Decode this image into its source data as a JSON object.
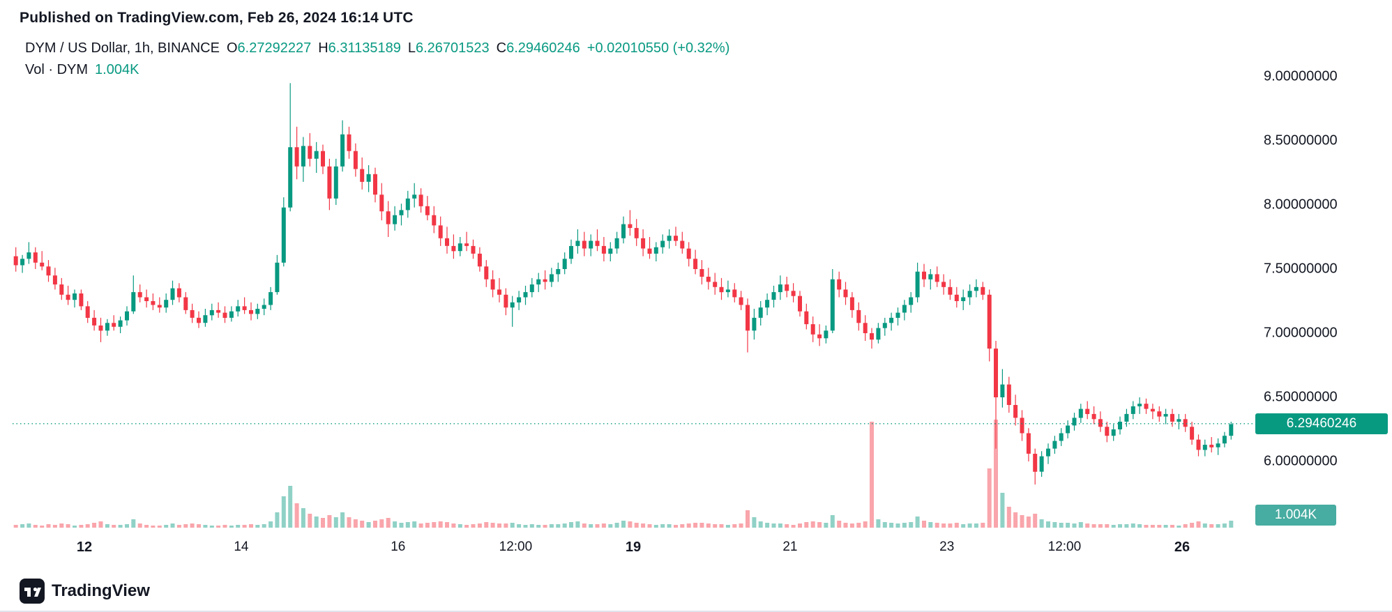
{
  "header": {
    "published": "Published on TradingView.com, Feb 26, 2024 16:14 UTC"
  },
  "legend": {
    "symbol_title": "DYM / US Dollar, 1h, BINANCE",
    "ohlc": [
      {
        "label": "O",
        "value": "6.27292227"
      },
      {
        "label": "H",
        "value": "6.31135189"
      },
      {
        "label": "L",
        "value": "6.26701523"
      },
      {
        "label": "C",
        "value": "6.29460246"
      }
    ],
    "change": "+0.02010550 (+0.32%)",
    "volume_label": "Vol · DYM",
    "volume_value": "1.004K"
  },
  "price_scale": {
    "ticks": [
      "9.00000000",
      "8.50000000",
      "8.00000000",
      "7.50000000",
      "7.00000000",
      "6.50000000",
      "6.00000000"
    ],
    "last_price_label": "6.29460246",
    "last_volume_label": "1.004K"
  },
  "time_scale": {
    "ticks": [
      {
        "label": "12",
        "index": 11,
        "bold": true
      },
      {
        "label": "14",
        "index": 35,
        "bold": false
      },
      {
        "label": "16",
        "index": 59,
        "bold": false
      },
      {
        "label": "12:00",
        "index": 77,
        "bold": false
      },
      {
        "label": "19",
        "index": 95,
        "bold": true
      },
      {
        "label": "21",
        "index": 119,
        "bold": false
      },
      {
        "label": "23",
        "index": 143,
        "bold": false
      },
      {
        "label": "12:00",
        "index": 161,
        "bold": false
      },
      {
        "label": "26",
        "index": 179,
        "bold": true
      }
    ]
  },
  "footer": {
    "brand": "TradingView"
  },
  "colors": {
    "up": "#089981",
    "down": "#F23645",
    "vol_up": "#90d1c6",
    "vol_down": "#f9a5ab",
    "text": "#131722",
    "last_price_line": "#089981",
    "badge_price_bg": "#089981",
    "badge_volume_bg": "#47aca1"
  },
  "chart_data": {
    "type": "candlestick",
    "title": "DYM / US Dollar, 1h, BINANCE",
    "symbol": "DYM/USD",
    "interval": "1h",
    "exchange": "BINANCE",
    "open": 6.27292227,
    "high": 6.31135189,
    "low": 6.26701523,
    "close": 6.29460246,
    "change_abs": 0.0201055,
    "change_pct": 0.32,
    "last_close": 6.29460246,
    "last_volume_k": 1.004,
    "ylim": [
      5.75,
      9.1
    ],
    "y_tick_values": [
      9.0,
      8.5,
      8.0,
      7.5,
      7.0,
      6.5,
      6.0
    ],
    "grid": false,
    "x_start": "Feb 11 02:00",
    "x_end": "Feb 26 16:00",
    "candle_hours": 2,
    "candles_format": [
      "open",
      "high",
      "low",
      "close",
      "volume_k"
    ],
    "candles": [
      [
        7.6,
        7.67,
        7.48,
        7.53,
        0.4
      ],
      [
        7.53,
        7.61,
        7.47,
        7.58,
        0.5
      ],
      [
        7.58,
        7.71,
        7.54,
        7.63,
        0.6
      ],
      [
        7.63,
        7.67,
        7.5,
        7.55,
        0.4
      ],
      [
        7.55,
        7.64,
        7.49,
        7.52,
        0.3
      ],
      [
        7.52,
        7.57,
        7.4,
        7.45,
        0.5
      ],
      [
        7.45,
        7.51,
        7.34,
        7.38,
        0.4
      ],
      [
        7.38,
        7.43,
        7.26,
        7.3,
        0.6
      ],
      [
        7.3,
        7.37,
        7.22,
        7.26,
        0.5
      ],
      [
        7.26,
        7.34,
        7.2,
        7.31,
        0.3
      ],
      [
        7.31,
        7.34,
        7.18,
        7.21,
        0.4
      ],
      [
        7.21,
        7.25,
        7.08,
        7.12,
        0.5
      ],
      [
        7.12,
        7.18,
        7.02,
        7.06,
        0.7
      ],
      [
        7.06,
        7.12,
        6.93,
        7.02,
        0.9
      ],
      [
        7.02,
        7.11,
        6.98,
        7.08,
        0.5
      ],
      [
        7.08,
        7.14,
        7.02,
        7.05,
        0.4
      ],
      [
        7.05,
        7.13,
        7.0,
        7.1,
        0.4
      ],
      [
        7.1,
        7.21,
        7.06,
        7.17,
        0.5
      ],
      [
        7.17,
        7.45,
        7.15,
        7.32,
        1.2
      ],
      [
        7.32,
        7.38,
        7.24,
        7.28,
        0.6
      ],
      [
        7.28,
        7.34,
        7.2,
        7.25,
        0.4
      ],
      [
        7.25,
        7.31,
        7.18,
        7.22,
        0.3
      ],
      [
        7.22,
        7.28,
        7.16,
        7.2,
        0.3
      ],
      [
        7.2,
        7.31,
        7.16,
        7.26,
        0.4
      ],
      [
        7.26,
        7.41,
        7.22,
        7.35,
        0.6
      ],
      [
        7.35,
        7.39,
        7.24,
        7.28,
        0.4
      ],
      [
        7.28,
        7.32,
        7.15,
        7.18,
        0.5
      ],
      [
        7.18,
        7.23,
        7.08,
        7.12,
        0.6
      ],
      [
        7.12,
        7.17,
        7.04,
        7.08,
        0.5
      ],
      [
        7.08,
        7.19,
        7.05,
        7.14,
        0.4
      ],
      [
        7.14,
        7.23,
        7.1,
        7.18,
        0.3
      ],
      [
        7.18,
        7.24,
        7.12,
        7.16,
        0.3
      ],
      [
        7.16,
        7.21,
        7.08,
        7.12,
        0.4
      ],
      [
        7.12,
        7.21,
        7.09,
        7.17,
        0.3
      ],
      [
        7.17,
        7.26,
        7.13,
        7.21,
        0.4
      ],
      [
        7.21,
        7.28,
        7.15,
        7.18,
        0.4
      ],
      [
        7.18,
        7.24,
        7.1,
        7.15,
        0.5
      ],
      [
        7.15,
        7.23,
        7.11,
        7.19,
        0.4
      ],
      [
        7.19,
        7.27,
        7.14,
        7.22,
        0.5
      ],
      [
        7.22,
        7.36,
        7.18,
        7.32,
        0.9
      ],
      [
        7.32,
        7.61,
        7.3,
        7.55,
        2.2
      ],
      [
        7.55,
        8.06,
        7.52,
        7.98,
        4.5
      ],
      [
        7.98,
        8.95,
        7.95,
        8.45,
        6.0
      ],
      [
        8.45,
        8.61,
        8.2,
        8.3,
        3.5
      ],
      [
        8.3,
        8.53,
        8.18,
        8.46,
        2.8
      ],
      [
        8.46,
        8.56,
        8.3,
        8.36,
        2.0
      ],
      [
        8.36,
        8.49,
        8.25,
        8.42,
        1.6
      ],
      [
        8.42,
        8.47,
        8.24,
        8.3,
        1.4
      ],
      [
        8.3,
        8.36,
        7.96,
        8.05,
        1.8
      ],
      [
        8.05,
        8.36,
        8.0,
        8.3,
        1.5
      ],
      [
        8.3,
        8.66,
        8.26,
        8.55,
        2.2
      ],
      [
        8.55,
        8.61,
        8.36,
        8.42,
        1.5
      ],
      [
        8.42,
        8.48,
        8.22,
        8.28,
        1.2
      ],
      [
        8.28,
        8.37,
        8.12,
        8.18,
        1.0
      ],
      [
        8.18,
        8.31,
        8.1,
        8.24,
        0.8
      ],
      [
        8.24,
        8.29,
        8.02,
        8.08,
        1.0
      ],
      [
        8.08,
        8.17,
        7.88,
        7.95,
        1.2
      ],
      [
        7.95,
        8.03,
        7.75,
        7.85,
        1.4
      ],
      [
        7.85,
        7.99,
        7.8,
        7.92,
        0.9
      ],
      [
        7.92,
        8.01,
        7.84,
        7.96,
        0.7
      ],
      [
        7.96,
        8.11,
        7.9,
        8.05,
        0.8
      ],
      [
        8.05,
        8.17,
        7.98,
        8.08,
        0.9
      ],
      [
        8.08,
        8.13,
        7.94,
        7.99,
        0.6
      ],
      [
        7.99,
        8.07,
        7.88,
        7.92,
        0.7
      ],
      [
        7.92,
        7.99,
        7.78,
        7.84,
        0.8
      ],
      [
        7.84,
        7.91,
        7.68,
        7.74,
        0.9
      ],
      [
        7.74,
        7.83,
        7.62,
        7.68,
        0.8
      ],
      [
        7.68,
        7.77,
        7.58,
        7.64,
        0.6
      ],
      [
        7.64,
        7.75,
        7.6,
        7.7,
        0.5
      ],
      [
        7.7,
        7.79,
        7.64,
        7.68,
        0.4
      ],
      [
        7.68,
        7.73,
        7.58,
        7.62,
        0.5
      ],
      [
        7.62,
        7.67,
        7.48,
        7.52,
        0.6
      ],
      [
        7.52,
        7.57,
        7.36,
        7.42,
        0.8
      ],
      [
        7.42,
        7.49,
        7.28,
        7.34,
        0.7
      ],
      [
        7.34,
        7.43,
        7.24,
        7.3,
        0.6
      ],
      [
        7.3,
        7.35,
        7.14,
        7.2,
        0.6
      ],
      [
        7.2,
        7.29,
        7.05,
        7.24,
        0.7
      ],
      [
        7.24,
        7.33,
        7.18,
        7.28,
        0.5
      ],
      [
        7.28,
        7.37,
        7.22,
        7.32,
        0.4
      ],
      [
        7.32,
        7.43,
        7.28,
        7.38,
        0.5
      ],
      [
        7.38,
        7.47,
        7.32,
        7.42,
        0.4
      ],
      [
        7.42,
        7.49,
        7.34,
        7.4,
        0.4
      ],
      [
        7.4,
        7.51,
        7.36,
        7.46,
        0.5
      ],
      [
        7.46,
        7.55,
        7.4,
        7.5,
        0.5
      ],
      [
        7.5,
        7.63,
        7.46,
        7.58,
        0.6
      ],
      [
        7.58,
        7.73,
        7.54,
        7.68,
        0.8
      ],
      [
        7.68,
        7.81,
        7.62,
        7.72,
        0.9
      ],
      [
        7.72,
        7.79,
        7.6,
        7.66,
        0.6
      ],
      [
        7.66,
        7.77,
        7.6,
        7.72,
        0.5
      ],
      [
        7.72,
        7.81,
        7.64,
        7.68,
        0.5
      ],
      [
        7.68,
        7.75,
        7.56,
        7.62,
        0.6
      ],
      [
        7.62,
        7.71,
        7.56,
        7.66,
        0.5
      ],
      [
        7.66,
        7.79,
        7.62,
        7.74,
        0.7
      ],
      [
        7.74,
        7.91,
        7.7,
        7.85,
        1.0
      ],
      [
        7.85,
        7.96,
        7.76,
        7.82,
        0.9
      ],
      [
        7.82,
        7.89,
        7.68,
        7.74,
        0.7
      ],
      [
        7.74,
        7.81,
        7.6,
        7.66,
        0.6
      ],
      [
        7.66,
        7.75,
        7.58,
        7.62,
        0.5
      ],
      [
        7.62,
        7.71,
        7.56,
        7.67,
        0.4
      ],
      [
        7.67,
        7.77,
        7.62,
        7.72,
        0.5
      ],
      [
        7.72,
        7.81,
        7.66,
        7.76,
        0.5
      ],
      [
        7.76,
        7.83,
        7.68,
        7.72,
        0.4
      ],
      [
        7.72,
        7.79,
        7.62,
        7.66,
        0.5
      ],
      [
        7.66,
        7.71,
        7.52,
        7.58,
        0.6
      ],
      [
        7.58,
        7.65,
        7.46,
        7.5,
        0.7
      ],
      [
        7.5,
        7.57,
        7.38,
        7.44,
        0.7
      ],
      [
        7.44,
        7.51,
        7.34,
        7.4,
        0.6
      ],
      [
        7.4,
        7.47,
        7.3,
        7.36,
        0.5
      ],
      [
        7.36,
        7.43,
        7.26,
        7.32,
        0.5
      ],
      [
        7.32,
        7.41,
        7.28,
        7.34,
        0.4
      ],
      [
        7.34,
        7.39,
        7.24,
        7.28,
        0.5
      ],
      [
        7.28,
        7.33,
        7.18,
        7.22,
        0.6
      ],
      [
        7.22,
        7.27,
        6.85,
        7.02,
        2.5
      ],
      [
        7.02,
        7.19,
        6.95,
        7.12,
        1.5
      ],
      [
        7.12,
        7.25,
        7.06,
        7.2,
        0.9
      ],
      [
        7.2,
        7.31,
        7.14,
        7.26,
        0.7
      ],
      [
        7.26,
        7.37,
        7.2,
        7.32,
        0.6
      ],
      [
        7.32,
        7.45,
        7.26,
        7.38,
        0.6
      ],
      [
        7.38,
        7.44,
        7.28,
        7.33,
        0.5
      ],
      [
        7.33,
        7.39,
        7.24,
        7.29,
        0.4
      ],
      [
        7.29,
        7.33,
        7.13,
        7.17,
        0.6
      ],
      [
        7.17,
        7.23,
        7.03,
        7.07,
        0.8
      ],
      [
        7.07,
        7.13,
        6.93,
        6.99,
        0.9
      ],
      [
        6.99,
        7.07,
        6.9,
        6.96,
        0.8
      ],
      [
        6.96,
        7.06,
        6.92,
        7.02,
        0.7
      ],
      [
        7.02,
        7.5,
        7.0,
        7.42,
        1.8
      ],
      [
        7.42,
        7.48,
        7.28,
        7.34,
        1.0
      ],
      [
        7.34,
        7.4,
        7.22,
        7.28,
        0.7
      ],
      [
        7.28,
        7.32,
        7.12,
        7.18,
        0.6
      ],
      [
        7.18,
        7.24,
        7.02,
        7.08,
        0.7
      ],
      [
        7.08,
        7.14,
        6.94,
        7.0,
        0.9
      ],
      [
        7.0,
        7.04,
        6.88,
        6.95,
        15.2
      ],
      [
        6.95,
        7.08,
        6.92,
        7.04,
        1.2
      ],
      [
        7.04,
        7.12,
        6.98,
        7.08,
        0.8
      ],
      [
        7.08,
        7.16,
        7.02,
        7.12,
        0.7
      ],
      [
        7.12,
        7.2,
        7.06,
        7.16,
        0.6
      ],
      [
        7.16,
        7.26,
        7.1,
        7.22,
        0.7
      ],
      [
        7.22,
        7.32,
        7.16,
        7.28,
        0.8
      ],
      [
        7.28,
        7.55,
        7.24,
        7.48,
        1.6
      ],
      [
        7.48,
        7.54,
        7.36,
        7.42,
        1.0
      ],
      [
        7.42,
        7.5,
        7.34,
        7.46,
        0.8
      ],
      [
        7.46,
        7.52,
        7.36,
        7.4,
        0.7
      ],
      [
        7.4,
        7.46,
        7.3,
        7.36,
        0.6
      ],
      [
        7.36,
        7.42,
        7.26,
        7.3,
        0.6
      ],
      [
        7.3,
        7.36,
        7.2,
        7.25,
        0.7
      ],
      [
        7.25,
        7.34,
        7.18,
        7.28,
        0.5
      ],
      [
        7.28,
        7.38,
        7.22,
        7.33,
        0.6
      ],
      [
        7.33,
        7.42,
        7.28,
        7.36,
        0.6
      ],
      [
        7.36,
        7.4,
        7.26,
        7.3,
        0.7
      ],
      [
        7.3,
        7.34,
        6.78,
        6.88,
        8.5
      ],
      [
        6.88,
        6.94,
        6.1,
        6.5,
        15.5
      ],
      [
        6.5,
        6.72,
        6.42,
        6.6,
        5.0
      ],
      [
        6.6,
        6.66,
        6.38,
        6.44,
        3.0
      ],
      [
        6.44,
        6.52,
        6.28,
        6.34,
        2.2
      ],
      [
        6.34,
        6.4,
        6.16,
        6.22,
        1.8
      ],
      [
        6.22,
        6.26,
        6.0,
        6.06,
        1.6
      ],
      [
        6.06,
        6.1,
        5.82,
        5.92,
        2.0
      ],
      [
        5.92,
        6.08,
        5.88,
        6.04,
        1.2
      ],
      [
        6.04,
        6.14,
        5.98,
        6.1,
        0.9
      ],
      [
        6.1,
        6.2,
        6.06,
        6.16,
        0.8
      ],
      [
        6.16,
        6.26,
        6.12,
        6.22,
        0.7
      ],
      [
        6.22,
        6.32,
        6.18,
        6.28,
        0.7
      ],
      [
        6.28,
        6.38,
        6.24,
        6.34,
        0.6
      ],
      [
        6.34,
        6.45,
        6.3,
        6.41,
        0.8
      ],
      [
        6.41,
        6.47,
        6.33,
        6.37,
        0.6
      ],
      [
        6.37,
        6.43,
        6.29,
        6.33,
        0.5
      ],
      [
        6.33,
        6.39,
        6.23,
        6.27,
        0.5
      ],
      [
        6.27,
        6.31,
        6.15,
        6.2,
        0.5
      ],
      [
        6.2,
        6.29,
        6.16,
        6.25,
        0.4
      ],
      [
        6.25,
        6.35,
        6.21,
        6.31,
        0.5
      ],
      [
        6.31,
        6.41,
        6.27,
        6.37,
        0.5
      ],
      [
        6.37,
        6.47,
        6.33,
        6.43,
        0.6
      ],
      [
        6.43,
        6.5,
        6.37,
        6.45,
        0.5
      ],
      [
        6.45,
        6.49,
        6.37,
        6.41,
        0.4
      ],
      [
        6.41,
        6.45,
        6.33,
        6.39,
        0.4
      ],
      [
        6.39,
        6.43,
        6.31,
        6.35,
        0.4
      ],
      [
        6.35,
        6.41,
        6.29,
        6.37,
        0.4
      ],
      [
        6.37,
        6.41,
        6.27,
        6.31,
        0.4
      ],
      [
        6.31,
        6.37,
        6.25,
        6.33,
        0.3
      ],
      [
        6.33,
        6.37,
        6.23,
        6.27,
        0.5
      ],
      [
        6.27,
        6.31,
        6.13,
        6.17,
        0.7
      ],
      [
        6.17,
        6.21,
        6.04,
        6.09,
        0.9
      ],
      [
        6.09,
        6.17,
        6.04,
        6.13,
        0.6
      ],
      [
        6.13,
        6.19,
        6.07,
        6.11,
        0.5
      ],
      [
        6.11,
        6.18,
        6.05,
        6.14,
        0.5
      ],
      [
        6.14,
        6.23,
        6.11,
        6.2,
        0.6
      ],
      [
        6.2,
        6.31,
        6.17,
        6.29,
        1.004
      ]
    ]
  }
}
